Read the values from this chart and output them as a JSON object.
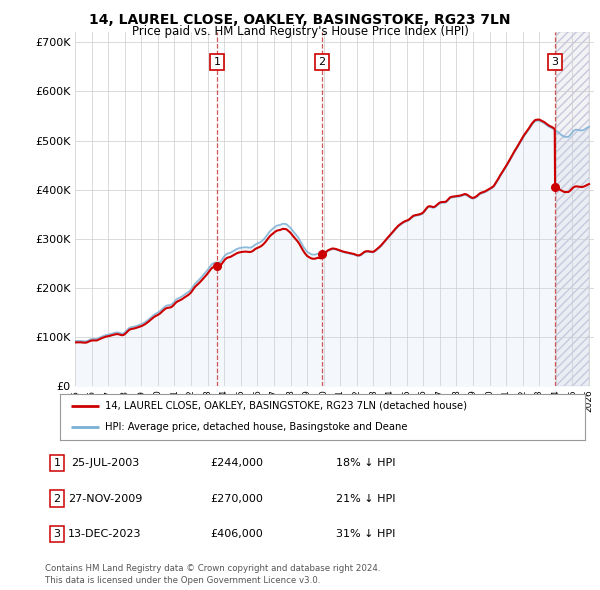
{
  "title": "14, LAUREL CLOSE, OAKLEY, BASINGSTOKE, RG23 7LN",
  "subtitle": "Price paid vs. HM Land Registry's House Price Index (HPI)",
  "ylim": [
    0,
    720000
  ],
  "yticks": [
    0,
    100000,
    200000,
    300000,
    400000,
    500000,
    600000,
    700000
  ],
  "ytick_labels": [
    "£0",
    "£100K",
    "£200K",
    "£300K",
    "£400K",
    "£500K",
    "£600K",
    "£700K"
  ],
  "hpi_color": "#7bafd4",
  "price_color": "#cc0000",
  "background_color": "#ffffff",
  "grid_color": "#cccccc",
  "legend_label_price": "14, LAUREL CLOSE, OAKLEY, BASINGSTOKE, RG23 7LN (detached house)",
  "legend_label_hpi": "HPI: Average price, detached house, Basingstoke and Deane",
  "footer": "Contains HM Land Registry data © Crown copyright and database right 2024.\nThis data is licensed under the Open Government Licence v3.0.",
  "sales": [
    {
      "date": 2003.56,
      "price": 244000,
      "label": "1",
      "date_str": "25-JUL-2003"
    },
    {
      "date": 2009.9,
      "price": 270000,
      "label": "2",
      "date_str": "27-NOV-2009"
    },
    {
      "date": 2023.95,
      "price": 406000,
      "label": "3",
      "date_str": "13-DEC-2023"
    }
  ],
  "annotations": [
    {
      "label": "1",
      "date_str": "25-JUL-2003",
      "price_str": "£244,000",
      "pct_str": "18% ↓ HPI"
    },
    {
      "label": "2",
      "date_str": "27-NOV-2009",
      "price_str": "£270,000",
      "pct_str": "21% ↓ HPI"
    },
    {
      "label": "3",
      "date_str": "13-DEC-2023",
      "price_str": "£406,000",
      "pct_str": "31% ↓ HPI"
    }
  ],
  "hpi_year_values": {
    "1995": 92000,
    "1995.25": 93500,
    "1995.5": 94000,
    "1995.75": 94500,
    "1996": 96000,
    "1996.25": 97500,
    "1996.5": 99000,
    "1996.75": 100500,
    "1997": 103000,
    "1997.25": 106000,
    "1997.5": 109000,
    "1997.75": 112000,
    "1998": 115000,
    "1998.25": 118000,
    "1998.5": 121000,
    "1998.75": 124000,
    "1999": 128000,
    "1999.25": 133000,
    "1999.5": 138000,
    "1999.75": 144000,
    "2000": 150000,
    "2000.25": 157000,
    "2000.5": 163000,
    "2000.75": 168000,
    "2001": 173000,
    "2001.25": 179000,
    "2001.5": 185000,
    "2001.75": 192000,
    "2002": 200000,
    "2002.25": 210000,
    "2002.5": 220000,
    "2002.75": 230000,
    "2003": 240000,
    "2003.25": 248000,
    "2003.5": 254000,
    "2003.75": 258000,
    "2004": 265000,
    "2004.25": 272000,
    "2004.5": 277000,
    "2004.75": 280000,
    "2005": 282000,
    "2005.25": 284000,
    "2005.5": 286000,
    "2005.75": 288000,
    "2006": 292000,
    "2006.25": 298000,
    "2006.5": 305000,
    "2006.75": 312000,
    "2007": 318000,
    "2007.25": 325000,
    "2007.5": 330000,
    "2007.75": 328000,
    "2008": 322000,
    "2008.25": 312000,
    "2008.5": 300000,
    "2008.75": 288000,
    "2009": 278000,
    "2009.25": 272000,
    "2009.5": 268000,
    "2009.75": 268000,
    "2010": 272000,
    "2010.25": 278000,
    "2010.5": 280000,
    "2010.75": 278000,
    "2011": 276000,
    "2011.25": 274000,
    "2011.5": 272000,
    "2011.75": 270000,
    "2012": 268000,
    "2012.25": 268000,
    "2012.5": 270000,
    "2012.75": 272000,
    "2013": 275000,
    "2013.25": 280000,
    "2013.5": 288000,
    "2013.75": 296000,
    "2014": 305000,
    "2014.25": 315000,
    "2014.5": 322000,
    "2014.75": 328000,
    "2015": 333000,
    "2015.25": 338000,
    "2015.5": 343000,
    "2015.75": 348000,
    "2016": 353000,
    "2016.25": 360000,
    "2016.5": 366000,
    "2016.75": 370000,
    "2017": 374000,
    "2017.25": 378000,
    "2017.5": 380000,
    "2017.75": 382000,
    "2018": 384000,
    "2018.25": 386000,
    "2018.5": 387000,
    "2018.75": 386000,
    "2019": 386000,
    "2019.25": 388000,
    "2019.5": 392000,
    "2019.75": 396000,
    "2020": 400000,
    "2020.25": 405000,
    "2020.5": 415000,
    "2020.75": 430000,
    "2021": 445000,
    "2021.25": 462000,
    "2021.5": 478000,
    "2021.75": 492000,
    "2022": 505000,
    "2022.25": 518000,
    "2022.5": 530000,
    "2022.75": 538000,
    "2023": 542000,
    "2023.25": 540000,
    "2023.5": 535000,
    "2023.75": 528000,
    "2024": 518000,
    "2024.25": 510000,
    "2024.5": 505000,
    "2024.75": 508000,
    "2025": 515000,
    "2025.5": 520000,
    "2026": 525000
  }
}
